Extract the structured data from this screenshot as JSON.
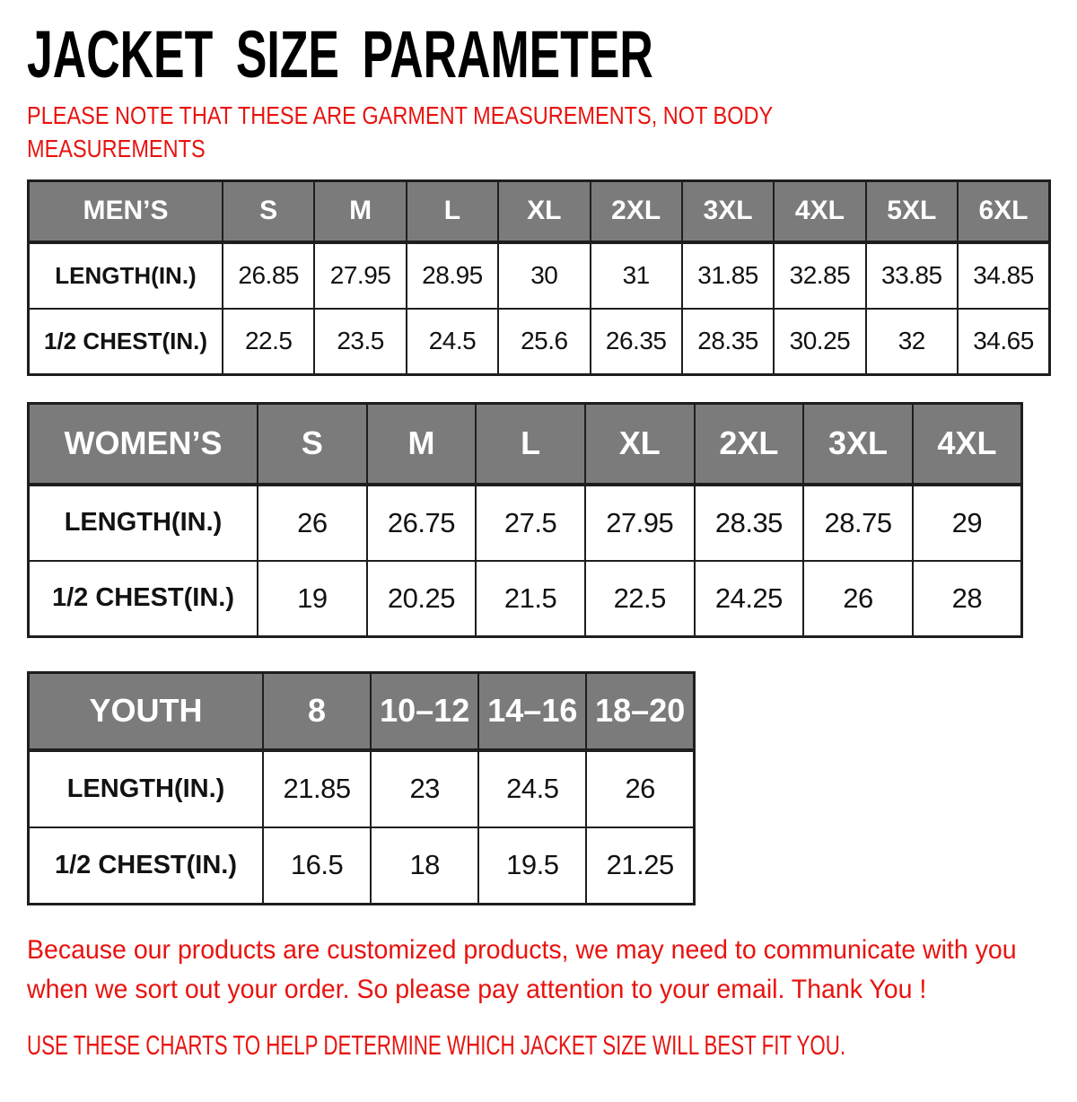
{
  "title": "JACKET SIZE PARAMETER",
  "note_lines": [
    "PLEASE NOTE THAT THESE ARE GARMENT MEASUREMENTS, NOT BODY",
    "MEASUREMENTS"
  ],
  "colors": {
    "accent_red": "#e8130f",
    "header_gray": "#7b7b7b",
    "border_dark": "#1e1e1e",
    "text_black": "#121212"
  },
  "tables": [
    {
      "name": "mens",
      "header": [
        "MEN’S",
        "S",
        "M",
        "L",
        "XL",
        "2XL",
        "3XL",
        "4XL",
        "5XL",
        "6XL"
      ],
      "rows": [
        [
          "LENGTH(IN.)",
          "26.85",
          "27.95",
          "28.95",
          "30",
          "31",
          "31.85",
          "32.85",
          "33.85",
          "34.85"
        ],
        [
          "1/2 CHEST(IN.)",
          "22.5",
          "23.5",
          "24.5",
          "25.6",
          "26.35",
          "28.35",
          "30.25",
          "32",
          "34.65"
        ]
      ]
    },
    {
      "name": "womens",
      "header": [
        "WOMEN’S",
        "S",
        "M",
        "L",
        "XL",
        "2XL",
        "3XL",
        "4XL"
      ],
      "rows": [
        [
          "LENGTH(IN.)",
          "26",
          "26.75",
          "27.5",
          "27.95",
          "28.35",
          "28.75",
          "29"
        ],
        [
          "1/2 CHEST(IN.)",
          "19",
          "20.25",
          "21.5",
          "22.5",
          "24.25",
          "26",
          "28"
        ]
      ]
    },
    {
      "name": "youth",
      "header": [
        "YOUTH",
        "8",
        "10–12",
        "14–16",
        "18–20"
      ],
      "rows": [
        [
          "LENGTH(IN.)",
          "21.85",
          "23",
          "24.5",
          "26"
        ],
        [
          "1/2 CHEST(IN.)",
          "16.5",
          "18",
          "19.5",
          "21.25"
        ]
      ]
    }
  ],
  "footer": {
    "paragraph_lines": [
      "Because our products are customized products, we may need to communicate with you",
      "when we sort out your order. So please pay attention to your email. Thank You !"
    ],
    "usage_line": "USE THESE CHARTS TO HELP DETERMINE WHICH JACKET SIZE WILL BEST FIT YOU."
  }
}
